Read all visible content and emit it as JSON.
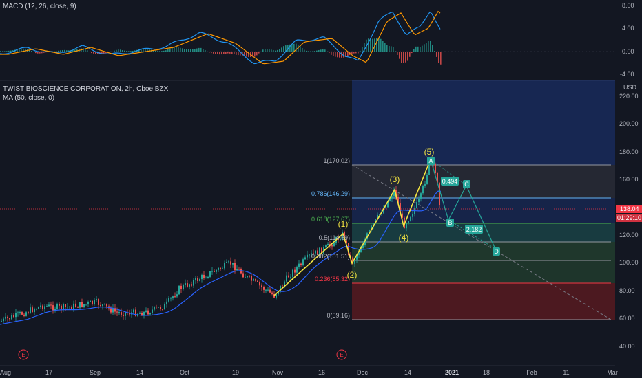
{
  "macd_legend": "MACD (12, 26, close, 9)",
  "macd_axis": [
    "8.00",
    "4.00",
    "0.00",
    "-4.00"
  ],
  "main_legend": {
    "title": "TWIST BIOSCIENCE CORPORATION, 2h, Cboe BZX",
    "ma": "MA (50, close, 0)"
  },
  "currency": "USD",
  "price_axis": [
    "220.00",
    "200.00",
    "180.00",
    "160.00",
    "140.00",
    "120.00",
    "100.00",
    "80.00",
    "60.00",
    "40.00"
  ],
  "last_price": "138.04",
  "countdown": "01:29:10",
  "time_axis": [
    "Aug",
    "17",
    "Sep",
    "14",
    "Oct",
    "19",
    "Nov",
    "16",
    "Dec",
    "14",
    "2021",
    "18",
    "Feb",
    "11",
    "Mar"
  ],
  "earnings_marker": "E",
  "fib_levels": [
    {
      "label": "1(170.02)",
      "price": 170.02,
      "color": "#b2b5be"
    },
    {
      "label": "0.786(146.29)",
      "price": 146.29,
      "color": "#64b5f6"
    },
    {
      "label": "0.618(127.67)",
      "price": 127.67,
      "color": "#4caf50"
    },
    {
      "label": "0.5(114.59)",
      "price": 114.59,
      "color": "#b2b5be"
    },
    {
      "label": "0.382(101.51)",
      "price": 101.51,
      "color": "#b2b5be"
    },
    {
      "label": "0.236(85.32)",
      "price": 85.32,
      "color": "#f23645"
    },
    {
      "label": "0(59.16)",
      "price": 59.16,
      "color": "#b2b5be"
    }
  ],
  "wave_labels": [
    "(1)",
    "(2)",
    "(3)",
    "(4)",
    "(5)"
  ],
  "abcd": {
    "points": [
      "A",
      "B",
      "C",
      "D"
    ],
    "ratio_1": "0.494",
    "ratio_2": "2.182"
  },
  "colors": {
    "up": "#26a69a",
    "down": "#ef5350",
    "ma": "#2962ff",
    "wave": "#f5e642",
    "abcd": "#26a69a",
    "price_tag": "#f23645"
  }
}
